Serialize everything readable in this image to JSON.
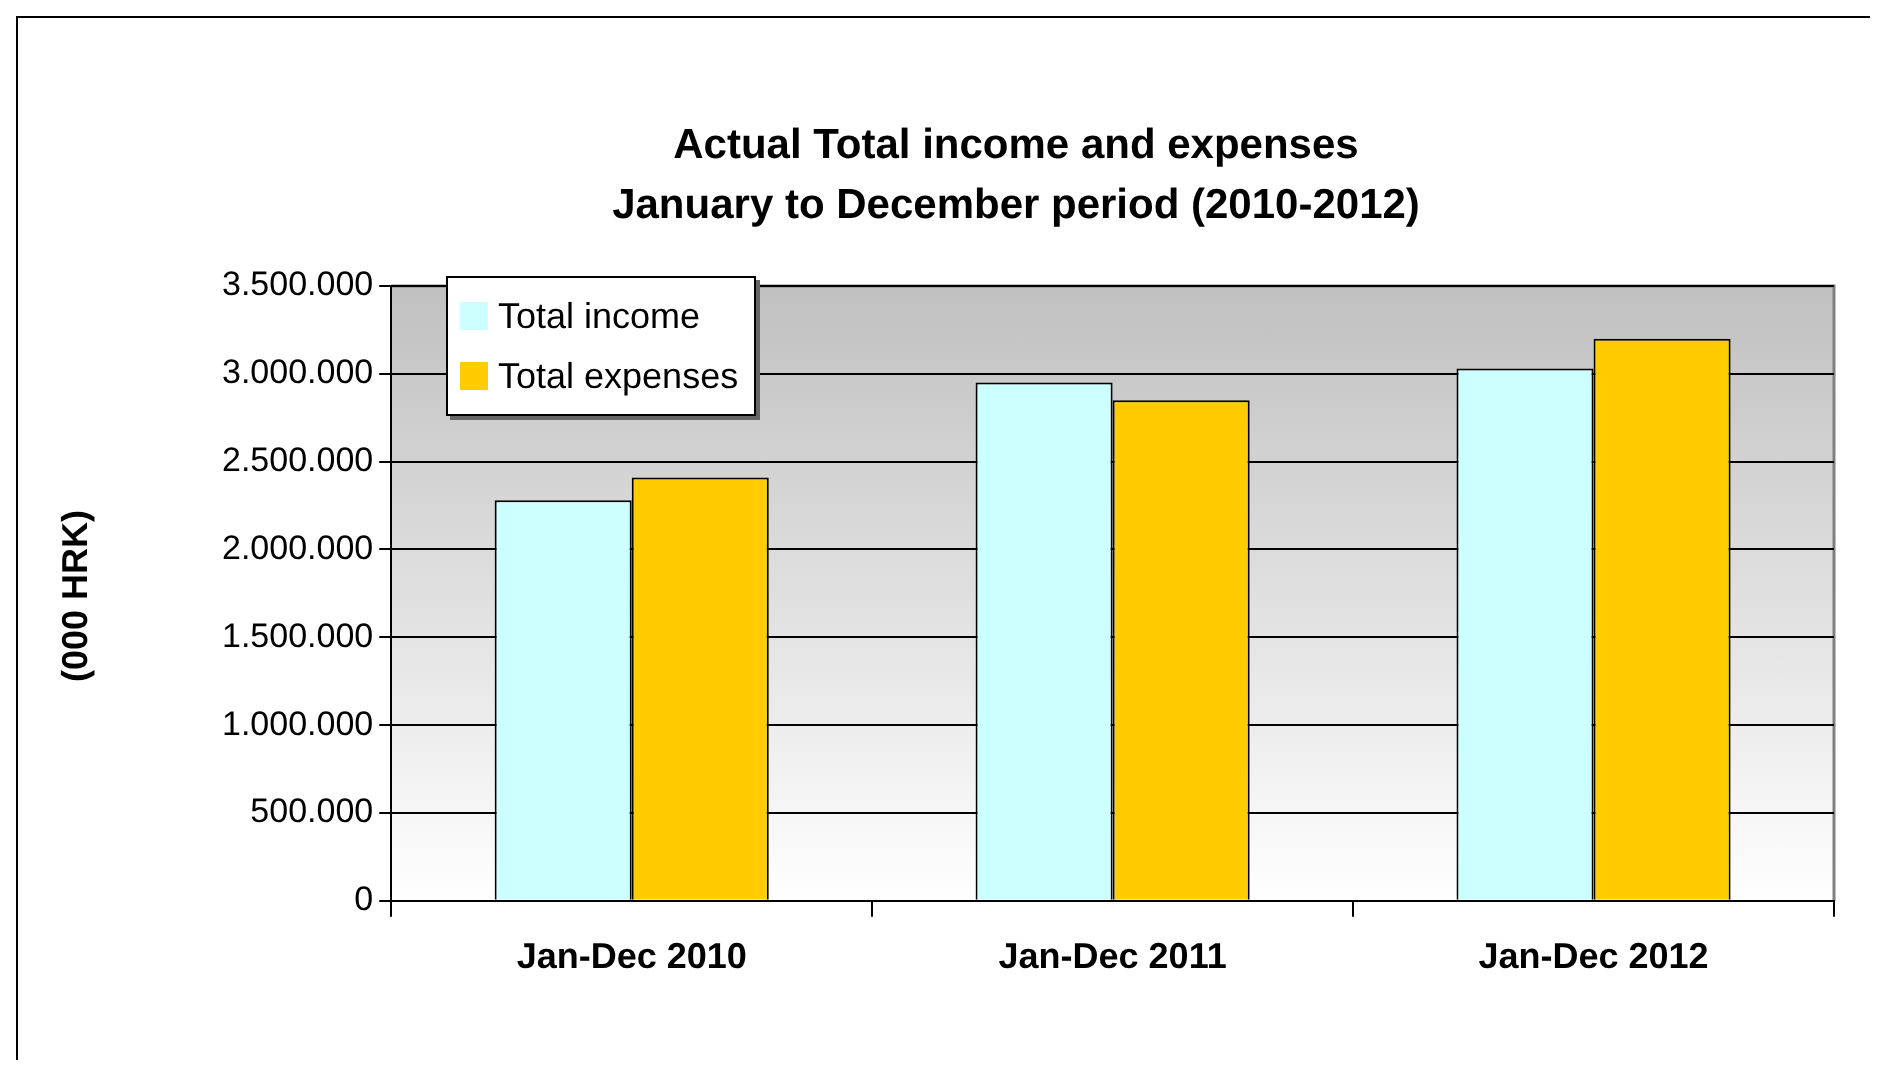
{
  "chart_data": {
    "type": "bar",
    "title": "Actual Total income and expenses\nJanuary to December period (2010-2012)",
    "ylabel": "(000 HRK)",
    "categories": [
      "Jan-Dec 2010",
      "Jan-Dec 2011",
      "Jan-Dec 2012"
    ],
    "series": [
      {
        "name": "Total income",
        "color": "#ccffff",
        "values": [
          2280000,
          2950000,
          3030000
        ]
      },
      {
        "name": "Total expenses",
        "color": "#ffcc00",
        "values": [
          2410000,
          2850000,
          3200000
        ]
      }
    ],
    "ylim": [
      0,
      3500000
    ],
    "yticks": [
      {
        "value": 0,
        "label": "0"
      },
      {
        "value": 500000,
        "label": "500.000"
      },
      {
        "value": 1000000,
        "label": "1.000.000"
      },
      {
        "value": 1500000,
        "label": "1.500.000"
      },
      {
        "value": 2000000,
        "label": "2.000.000"
      },
      {
        "value": 2500000,
        "label": "2.500.000"
      },
      {
        "value": 3000000,
        "label": "3.000.000"
      },
      {
        "value": 3500000,
        "label": "3.500.000"
      }
    ],
    "grid": "y",
    "legend": "top left"
  }
}
